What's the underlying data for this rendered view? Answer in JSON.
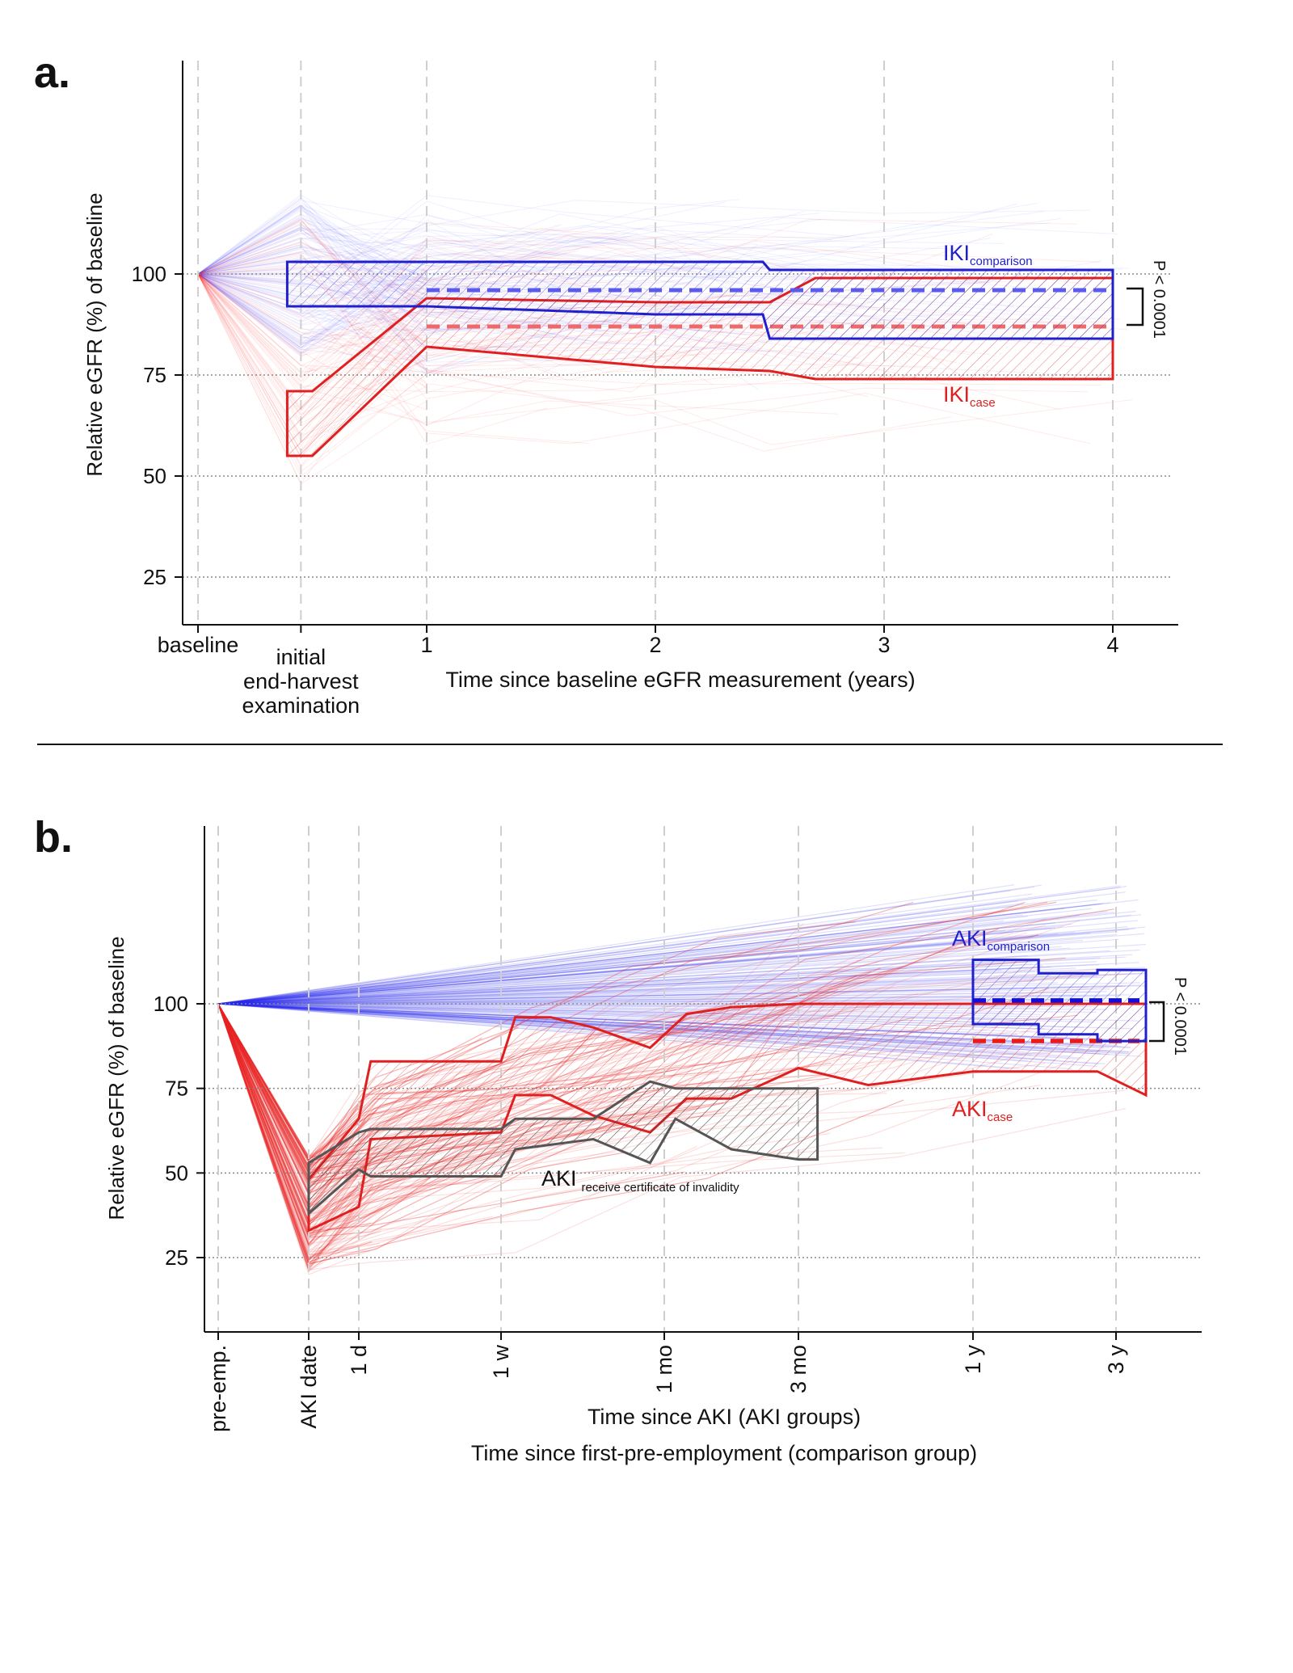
{
  "colors": {
    "comparison": "#1f1fcc",
    "case": "#e02020",
    "invalidity": "#555555",
    "grid": "#888888",
    "ink": "#111111"
  },
  "panel_a": {
    "label": "a.",
    "ylabel": "Relative eGFR (%) of baseline",
    "xlabel": "Time since baseline eGFR measurement (years)",
    "x_tick_labels": [
      "baseline",
      "initial\nend-harvest\nexamination",
      "1",
      "2",
      "3",
      "4"
    ],
    "y_tick_labels": [
      "25",
      "50",
      "75",
      "100"
    ],
    "series_labels": {
      "comparison_main": "IKI",
      "comparison_sub": "comparison",
      "case_main": "IKI",
      "case_sub": "case"
    },
    "p_value": "P < 0.0001"
  },
  "panel_b": {
    "label": "b.",
    "ylabel": "Relative eGFR (%) of baseline",
    "xlabel_1": "Time since AKI (AKI groups)",
    "xlabel_2": "Time since first-pre-employment (comparison group)",
    "x_tick_labels": [
      "pre-emp.",
      "AKI date",
      "1 d",
      "1 w",
      "1 mo",
      "3 mo",
      "1 y",
      "3 y"
    ],
    "y_tick_labels": [
      "25",
      "50",
      "75",
      "100"
    ],
    "series_labels": {
      "comparison_main": "AKI",
      "comparison_sub": "comparison",
      "case_main": "AKI",
      "case_sub": "case",
      "invalidity_main": "AKI",
      "invalidity_sub": "receive certificate of invalidity"
    },
    "p_value": "P < 0.0001"
  },
  "chart_data": [
    {
      "type": "area",
      "panel": "a",
      "xlabel": "Time since baseline eGFR measurement (years)",
      "ylabel": "Relative eGFR (%) of baseline",
      "x_ticks": [
        {
          "label": "baseline",
          "x": 0
        },
        {
          "label": "initial end-harvest examination",
          "x": 0.45
        },
        {
          "label": "1",
          "x": 1
        },
        {
          "label": "2",
          "x": 2
        },
        {
          "label": "3",
          "x": 3
        },
        {
          "label": "4",
          "x": 4
        }
      ],
      "y_ticks": [
        25,
        50,
        75,
        100
      ],
      "xlim": [
        -0.08,
        4.25
      ],
      "ylim": [
        15,
        150
      ],
      "series": [
        {
          "name": "IKIcomparison",
          "color": "#1f1fcc",
          "band_x": [
            0.39,
            0.45,
            1,
            2,
            2.47,
            2.5,
            4
          ],
          "upper": [
            103,
            103,
            103,
            103,
            103,
            101,
            101
          ],
          "lower": [
            92,
            92,
            92,
            90,
            90,
            84,
            84
          ],
          "mean": 96,
          "mean_x": [
            1,
            4
          ]
        },
        {
          "name": "IKIcase",
          "color": "#e02020",
          "band_x": [
            0.39,
            0.5,
            1,
            2,
            2.5,
            2.7,
            4
          ],
          "upper": [
            71,
            71,
            94,
            93,
            93,
            99,
            99
          ],
          "lower": [
            55,
            55,
            82,
            77,
            76,
            74,
            74
          ],
          "mean": 87,
          "mean_x": [
            1,
            4
          ]
        }
      ],
      "annotation": "P < 0.0001"
    },
    {
      "type": "area",
      "panel": "b",
      "xlabel": "Time since AKI (AKI groups) / Time since first-pre-employment (comparison group)",
      "ylabel": "Relative eGFR (%) of baseline",
      "x_ticks": [
        {
          "label": "pre-emp.",
          "x": -0.5
        },
        {
          "label": "AKI date",
          "x": 0
        },
        {
          "label": "1 d",
          "x": 1
        },
        {
          "label": "1 w",
          "x": 7
        },
        {
          "label": "1 mo",
          "x": 30
        },
        {
          "label": "3 mo",
          "x": 90
        },
        {
          "label": "1 y",
          "x": 365
        },
        {
          "label": "3 y",
          "x": 1095
        }
      ],
      "y_ticks": [
        25,
        50,
        75,
        100
      ],
      "ylim": [
        5,
        150
      ],
      "series": [
        {
          "name": "AKIcomparison",
          "color": "#1f1fcc",
          "band_x": [
            365,
            700,
            700,
            1000,
            1000,
            1300
          ],
          "upper": [
            113,
            113,
            109,
            109,
            110,
            110
          ],
          "lower": [
            94,
            94,
            91,
            91,
            89,
            89
          ],
          "mean": 101,
          "mean_x": [
            365,
            1300
          ]
        },
        {
          "name": "AKIcase",
          "color": "#e02020",
          "band_x": [
            0,
            1,
            1.5,
            7,
            9,
            14,
            20,
            28,
            40,
            60,
            90,
            200,
            365,
            700,
            1000,
            1300
          ],
          "upper": [
            48,
            66,
            83,
            83,
            96,
            96,
            93,
            87,
            97,
            99,
            100,
            100,
            100,
            100,
            100,
            100
          ],
          "lower": [
            33,
            40,
            60,
            62,
            73,
            73,
            67,
            62,
            72,
            72,
            81,
            76,
            80,
            80,
            80,
            73
          ],
          "mean": 89,
          "mean_x": [
            365,
            1300
          ]
        },
        {
          "name": "AKIreceive certificate of invalidity",
          "color": "#555555",
          "band_x": [
            0,
            1,
            1.5,
            7,
            9,
            20,
            28,
            35,
            60,
            90,
            120
          ],
          "upper": [
            53,
            62,
            63,
            63,
            66,
            66,
            77,
            75,
            75,
            75,
            75
          ],
          "lower": [
            38,
            51,
            49,
            49,
            57,
            60,
            53,
            66,
            57,
            54,
            54
          ]
        }
      ],
      "annotation": "P < 0.0001"
    }
  ]
}
